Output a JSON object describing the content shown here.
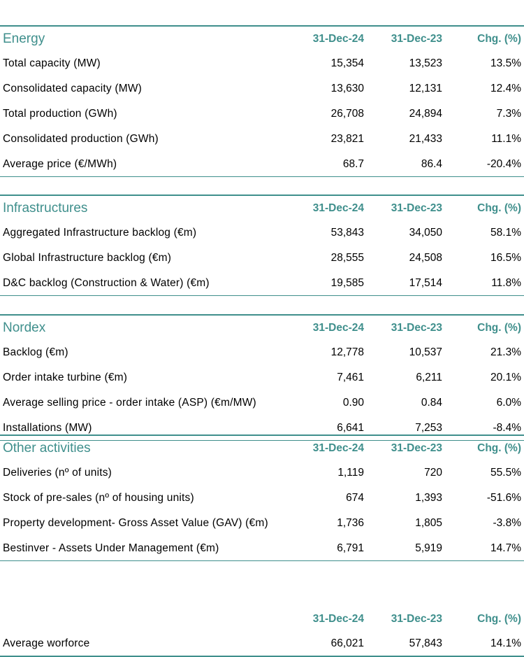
{
  "columns": [
    "31-Dec-24",
    "31-Dec-23",
    "Chg. (%)"
  ],
  "sections": [
    {
      "title": "Energy",
      "rows": [
        {
          "label": "Total capacity (MW)",
          "v1": "15,354",
          "v2": "13,523",
          "chg": "13.5%"
        },
        {
          "label": "Consolidated capacity (MW)",
          "v1": "13,630",
          "v2": "12,131",
          "chg": "12.4%"
        },
        {
          "label": "Total production (GWh)",
          "v1": "26,708",
          "v2": "24,894",
          "chg": "7.3%"
        },
        {
          "label": "Consolidated production (GWh)",
          "v1": "23,821",
          "v2": "21,433",
          "chg": "11.1%"
        },
        {
          "label": "Average price (€/MWh)",
          "v1": "68.7",
          "v2": "86.4",
          "chg": "-20.4%"
        }
      ]
    },
    {
      "title": "Infrastructures",
      "rows": [
        {
          "label": "Aggregated Infrastructure backlog (€m)",
          "v1": "53,843",
          "v2": "34,050",
          "chg": "58.1%"
        },
        {
          "label": "Global Infrastructure backlog (€m)",
          "v1": "28,555",
          "v2": "24,508",
          "chg": "16.5%"
        },
        {
          "label": "D&C backlog (Construction & Water) (€m)",
          "v1": "19,585",
          "v2": "17,514",
          "chg": "11.8%"
        }
      ]
    },
    {
      "title": "Nordex",
      "rows": [
        {
          "label": "Backlog (€m)",
          "v1": "12,778",
          "v2": "10,537",
          "chg": "21.3%"
        },
        {
          "label": "Order intake turbine (€m)",
          "v1": "7,461",
          "v2": "6,211",
          "chg": "20.1%"
        },
        {
          "label": "Average selling price - order intake (ASP) (€m/MW)",
          "v1": "0.90",
          "v2": "0.84",
          "chg": "6.0%"
        },
        {
          "label": "Installations (MW)",
          "v1": "6,641",
          "v2": "7,253",
          "chg": "-8.4%"
        }
      ]
    },
    {
      "title": "Other activities",
      "rows": [
        {
          "label": "Deliveries (nº of units)",
          "v1": "1,119",
          "v2": "720",
          "chg": "55.5%"
        },
        {
          "label": "Stock of pre-sales (nº of housing units)",
          "v1": "674",
          "v2": "1,393",
          "chg": "-51.6%"
        },
        {
          "label": "Property development- Gross Asset Value (GAV) (€m)",
          "v1": "1,736",
          "v2": "1,805",
          "chg": "-3.8%"
        },
        {
          "label": "Bestinver - Assets Under Management (€m)",
          "v1": "6,791",
          "v2": "5,919",
          "chg": "14.7%"
        }
      ]
    },
    {
      "title": "",
      "rows": [
        {
          "label": "Average worforce",
          "v1": "66,021",
          "v2": "57,843",
          "chg": "14.1%"
        }
      ]
    }
  ]
}
